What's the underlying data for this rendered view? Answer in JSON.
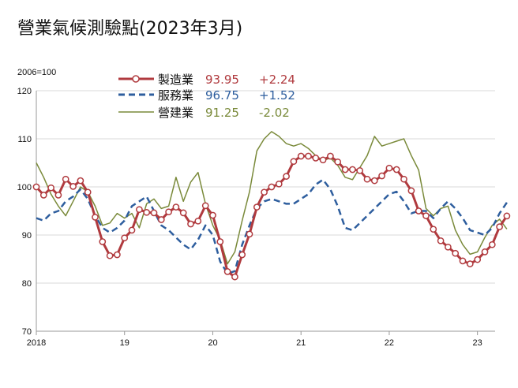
{
  "title": "營業氣候測驗點(2023年3月)",
  "chart_data": {
    "type": "line",
    "base_label": "2006=100",
    "ylim": [
      70,
      120
    ],
    "yticks": [
      70,
      80,
      90,
      100,
      110,
      120
    ],
    "xlim": [
      2018,
      2023.2
    ],
    "xticks": [
      {
        "value": 2018,
        "label": "2018"
      },
      {
        "value": 2019,
        "label": "19"
      },
      {
        "value": 2020,
        "label": "20"
      },
      {
        "value": 2021,
        "label": "21"
      },
      {
        "value": 2022,
        "label": "22"
      },
      {
        "value": 2023,
        "label": "23"
      }
    ],
    "grid": true,
    "legend_position": "top",
    "series": [
      {
        "name": "製造業",
        "latest": "93.95",
        "change": "+2.24",
        "color": "#b03a3e",
        "style": "solid-markers",
        "values": [
          100.0,
          98.3,
          99.8,
          98.3,
          101.6,
          100.1,
          101.3,
          98.9,
          93.7,
          88.6,
          85.7,
          85.9,
          89.4,
          91.0,
          95.3,
          94.7,
          94.6,
          93.2,
          94.8,
          95.8,
          94.6,
          92.3,
          92.9,
          96.1,
          94.1,
          88.6,
          82.4,
          81.3,
          85.9,
          90.2,
          95.8,
          98.9,
          100.0,
          100.6,
          102.2,
          105.3,
          106.4,
          106.4,
          106.0,
          105.6,
          106.4,
          105.2,
          103.6,
          103.6,
          103.4,
          101.6,
          101.3,
          102.3,
          103.9,
          103.6,
          101.6,
          99.2,
          95.0,
          94.0,
          91.2,
          88.8,
          87.5,
          86.2,
          84.6,
          84.0,
          84.9,
          86.5,
          88.0,
          91.7,
          93.95
        ]
      },
      {
        "name": "服務業",
        "latest": "96.75",
        "change": "+1.52",
        "color": "#2e5e9e",
        "style": "dashed",
        "values": [
          93.5,
          93.0,
          94.5,
          95.0,
          97.0,
          98.0,
          99.5,
          97.5,
          94.0,
          91.5,
          90.5,
          91.5,
          93.0,
          96.0,
          97.0,
          98.0,
          95.0,
          92.0,
          91.0,
          89.5,
          88.0,
          87.0,
          89.0,
          92.0,
          90.0,
          84.5,
          82.0,
          82.5,
          88.0,
          92.0,
          95.5,
          97.0,
          97.5,
          97.0,
          96.5,
          96.5,
          97.5,
          98.5,
          100.5,
          101.5,
          99.5,
          96.0,
          91.5,
          91.0,
          92.5,
          94.0,
          95.5,
          97.0,
          98.5,
          99.0,
          97.0,
          94.5,
          95.0,
          95.0,
          93.5,
          95.5,
          97.0,
          95.5,
          93.5,
          91.0,
          90.5,
          90.0,
          91.5,
          94.5,
          96.75
        ]
      },
      {
        "name": "營建業",
        "latest": "91.25",
        "change": "-2.02",
        "color": "#7a8a3a",
        "style": "solid",
        "values": [
          105.0,
          102.0,
          98.5,
          96.0,
          94.0,
          97.0,
          100.0,
          99.0,
          96.0,
          92.0,
          92.5,
          94.5,
          93.5,
          94.5,
          91.5,
          96.5,
          97.5,
          95.5,
          96.0,
          102.0,
          97.0,
          101.0,
          103.0,
          96.5,
          92.0,
          89.0,
          84.0,
          86.5,
          93.0,
          99.0,
          107.5,
          110.0,
          111.5,
          110.5,
          109.0,
          108.5,
          109.0,
          108.0,
          106.5,
          105.5,
          106.0,
          104.5,
          102.0,
          101.5,
          104.0,
          106.5,
          110.5,
          108.5,
          109.0,
          109.5,
          110.0,
          106.5,
          103.5,
          95.5,
          94.0,
          95.5,
          96.0,
          91.0,
          88.0,
          86.0,
          86.5,
          89.5,
          92.0,
          93.3,
          91.25
        ]
      }
    ]
  }
}
